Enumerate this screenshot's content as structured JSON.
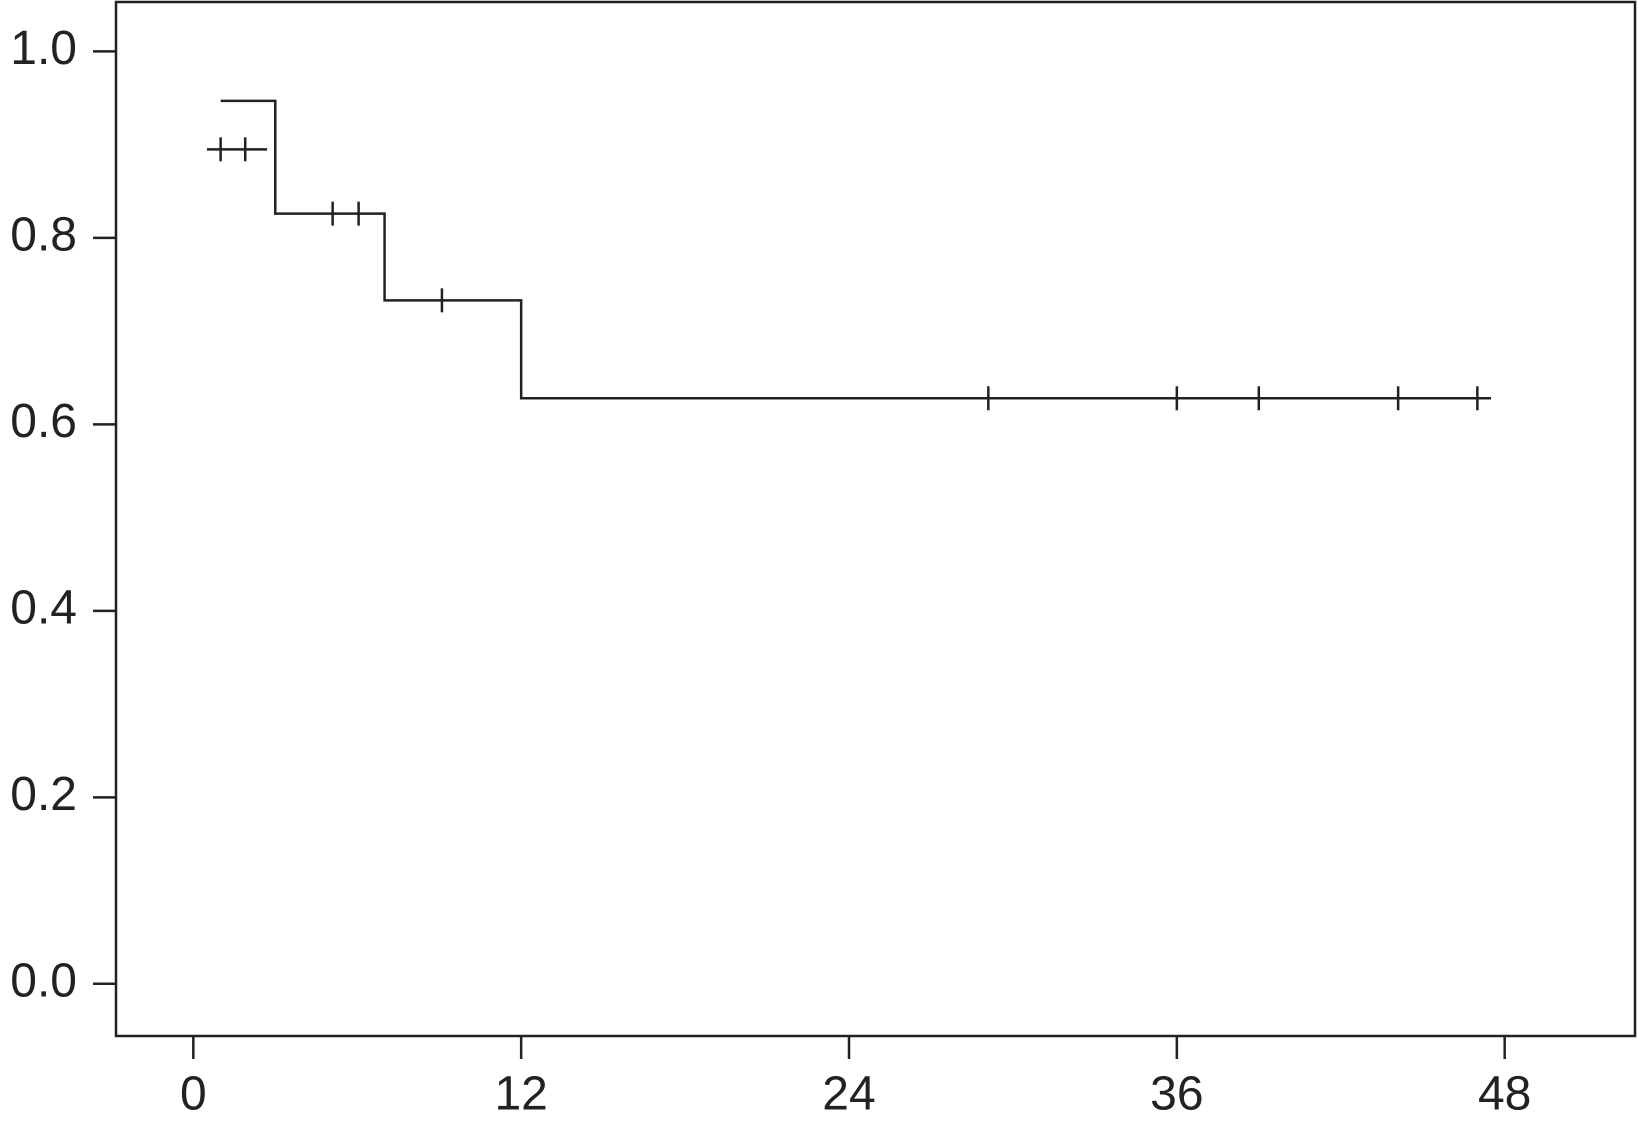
{
  "chart_data": {
    "type": "step",
    "xlim": [
      -2.83,
      52.77
    ],
    "ylim": [
      -0.056,
      1.053
    ],
    "xticks": [
      0,
      12,
      24,
      36,
      48
    ],
    "yticks": [
      {
        "value": 0,
        "label": "0.0"
      },
      0.2,
      0.4,
      0.6,
      0.8,
      {
        "value": 1,
        "label": "1.0"
      }
    ],
    "color": "#222222",
    "series": [
      {
        "x": [
          1,
          3,
          3,
          7,
          7,
          12,
          12,
          47.5
        ],
        "values": [
          0.947,
          0.947,
          0.826,
          0.826,
          0.733,
          0.733,
          0.628,
          0.628
        ],
        "censored": {
          "x": [
            5.1,
            6.05,
            9.1,
            29.1,
            36,
            39,
            44.1,
            47
          ],
          "values": [
            0.826,
            0.826,
            0.733,
            0.628,
            0.628,
            0.628,
            0.628,
            0.628
          ]
        }
      },
      {
        "x": [
          0.5,
          2.7
        ],
        "values": [
          0.895,
          0.895
        ],
        "censored": {
          "x": [
            1,
            1.9
          ],
          "values": [
            0.895,
            0.895
          ]
        }
      }
    ]
  }
}
